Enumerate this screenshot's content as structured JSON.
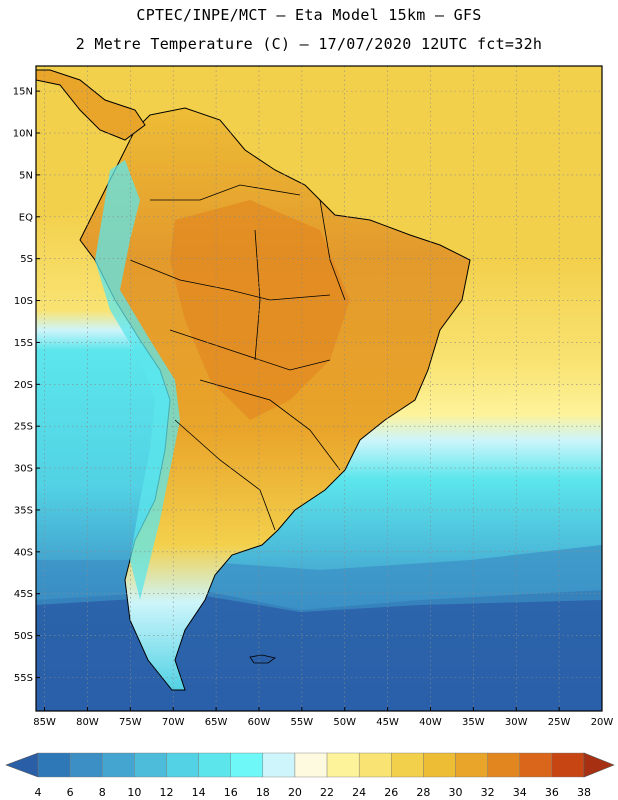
{
  "header": {
    "line1": "CPTEC/INPE/MCT –  Eta Model 15km – GFS",
    "line2": "2 Metre Temperature (C) – 17/07/2020 12UTC fct=32h"
  },
  "map": {
    "lon_range": [
      -86,
      -20
    ],
    "lat_range": [
      -59,
      18
    ],
    "lat_ticks": [
      "15N",
      "10N",
      "5N",
      "EQ",
      "5S",
      "10S",
      "15S",
      "20S",
      "25S",
      "30S",
      "35S",
      "40S",
      "45S",
      "50S",
      "55S"
    ],
    "lat_values": [
      15,
      10,
      5,
      0,
      -5,
      -10,
      -15,
      -20,
      -25,
      -30,
      -35,
      -40,
      -45,
      -50,
      -55
    ],
    "lon_ticks": [
      "85W",
      "80W",
      "75W",
      "70W",
      "65W",
      "60W",
      "55W",
      "50W",
      "45W",
      "40W",
      "35W",
      "30W",
      "25W",
      "20W"
    ],
    "lon_values": [
      -85,
      -80,
      -75,
      -70,
      -65,
      -60,
      -55,
      -50,
      -45,
      -40,
      -35,
      -30,
      -25,
      -20
    ]
  },
  "colorbar": {
    "labels": [
      "4",
      "6",
      "8",
      "10",
      "12",
      "14",
      "16",
      "18",
      "20",
      "22",
      "24",
      "26",
      "28",
      "30",
      "32",
      "34",
      "36",
      "38"
    ],
    "colors": [
      "#2a5fa8",
      "#2e78b8",
      "#3b8fc4",
      "#44a6d0",
      "#4cbcda",
      "#52d2e4",
      "#5ce6ec",
      "#6ff8f8",
      "#cdf5fb",
      "#fdfae0",
      "#fdf39a",
      "#f9e372",
      "#f3d04c",
      "#eebd36",
      "#e9a42a",
      "#e2861f",
      "#d9661a",
      "#c74512",
      "#a83012"
    ]
  },
  "colors": {
    "land_hot": "#e39a2c",
    "land_warm": "#eeb43a",
    "ocean_warm": "#f2cd55",
    "ocean_cool": "#47bfe0",
    "ocean_cold": "#2a5fa8",
    "border": "#000000"
  }
}
